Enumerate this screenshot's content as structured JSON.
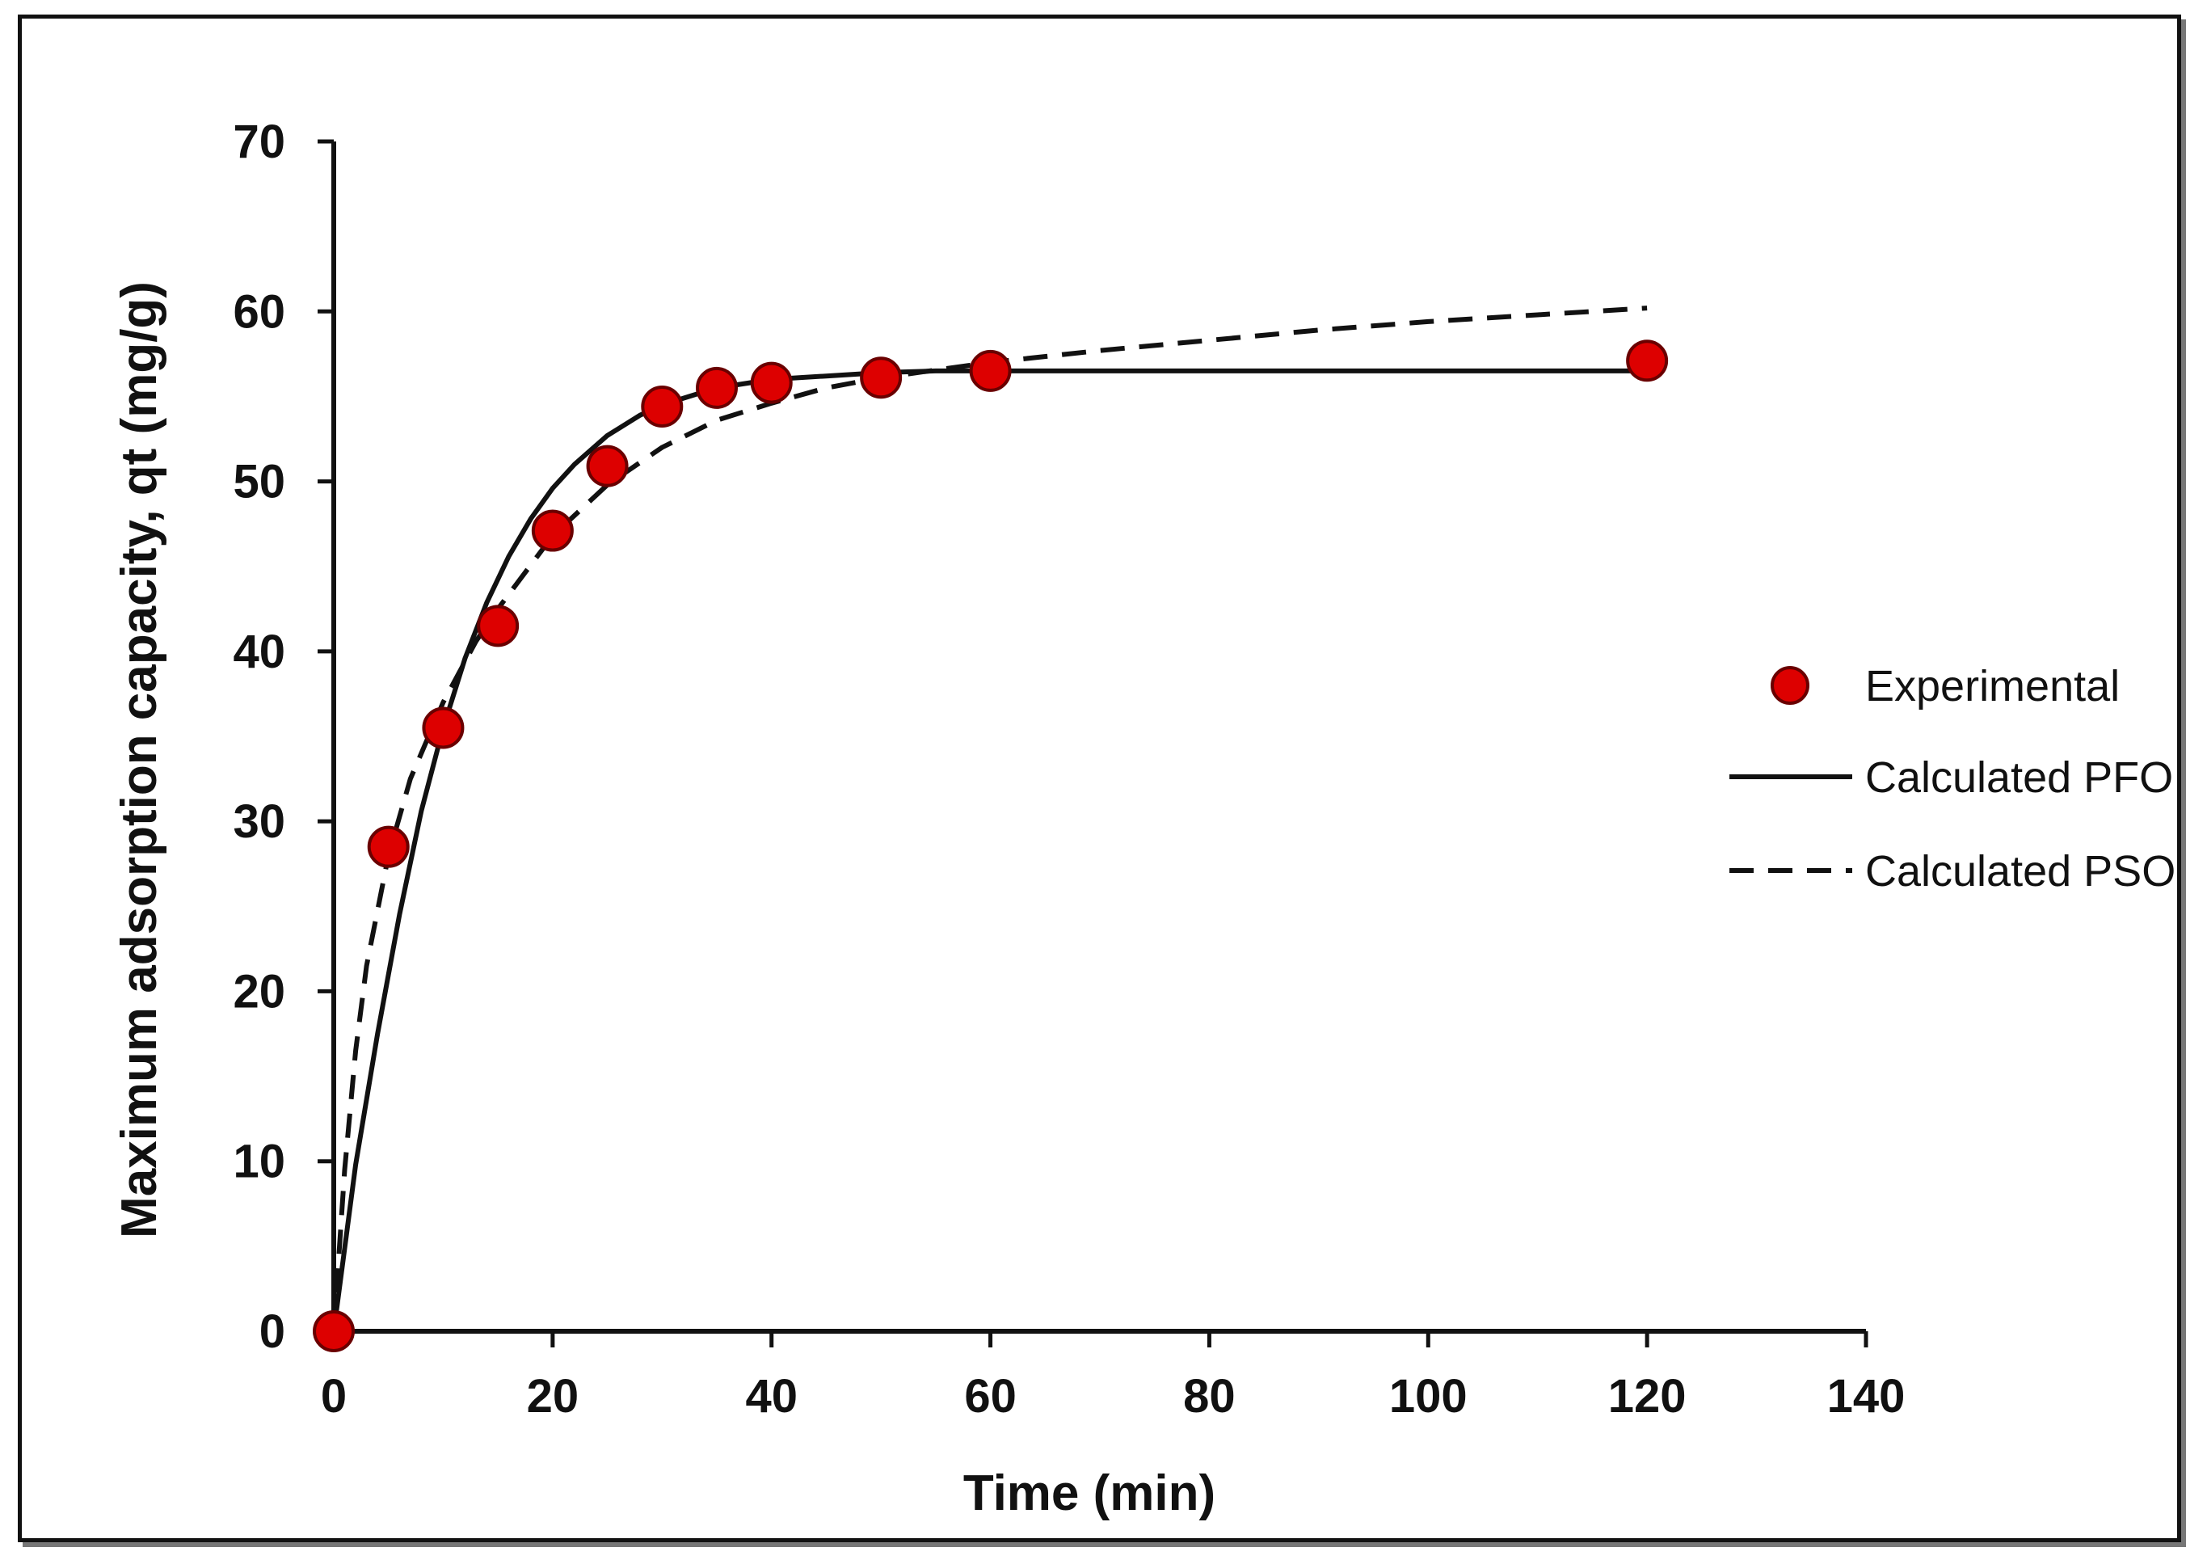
{
  "chart_data": {
    "type": "scatter",
    "title": "",
    "xlabel": "Time (min)",
    "ylabel": "Maximum adsorption capacity, qt (mg/g)",
    "xlim": [
      0,
      140
    ],
    "ylim": [
      0,
      70
    ],
    "x_ticks": [
      "0",
      "20",
      "40",
      "60",
      "80",
      "100",
      "120",
      "140"
    ],
    "y_ticks": [
      "0",
      "10",
      "20",
      "30",
      "40",
      "50",
      "60",
      "70"
    ],
    "grid": false,
    "legend_position": "right",
    "series": [
      {
        "name": "Experimental",
        "kind": "points",
        "color": "#dd0000",
        "x": [
          0,
          5,
          10,
          15,
          20,
          25,
          30,
          35,
          40,
          50,
          60,
          120
        ],
        "y": [
          0,
          28.5,
          35.5,
          41.5,
          47.1,
          50.9,
          54.4,
          55.5,
          55.8,
          56.1,
          56.5,
          57.1
        ]
      },
      {
        "name": "Calculated PFO",
        "kind": "line",
        "style": "solid",
        "color": "#111111",
        "x": [
          0,
          2,
          4,
          6,
          8,
          10,
          12,
          14,
          16,
          18,
          20,
          22,
          25,
          28,
          30,
          33,
          35,
          38,
          40,
          45,
          50,
          55,
          60,
          70,
          80,
          90,
          100,
          110,
          120
        ],
        "y": [
          0,
          9.8,
          17.5,
          24.5,
          30.6,
          35.5,
          39.6,
          42.9,
          45.6,
          47.8,
          49.6,
          51.0,
          52.7,
          53.9,
          54.5,
          55.1,
          55.5,
          55.8,
          56.0,
          56.2,
          56.4,
          56.5,
          56.5,
          56.5,
          56.5,
          56.5,
          56.5,
          56.5,
          56.5
        ]
      },
      {
        "name": "Calculated PSO",
        "kind": "line",
        "style": "dashed",
        "color": "#111111",
        "x": [
          0,
          1,
          2,
          3,
          5,
          7,
          10,
          13,
          15,
          20,
          25,
          30,
          35,
          40,
          45,
          50,
          60,
          70,
          80,
          90,
          100,
          110,
          120
        ],
        "y": [
          0,
          9.5,
          16.5,
          21.5,
          28.0,
          32.5,
          37.0,
          40.6,
          42.5,
          46.8,
          49.8,
          52.0,
          53.6,
          54.6,
          55.5,
          56.1,
          57.0,
          57.7,
          58.3,
          58.9,
          59.4,
          59.8,
          60.2
        ]
      }
    ]
  }
}
